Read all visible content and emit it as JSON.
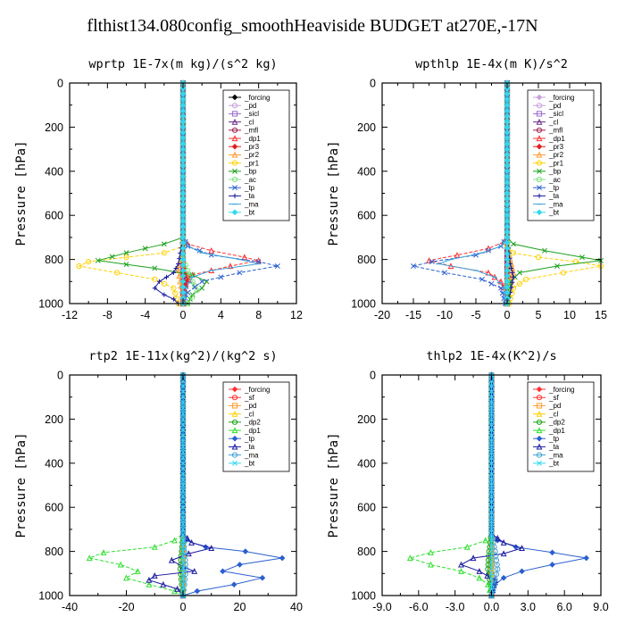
{
  "figure": {
    "title": "flthist134.080config_smoothHeaviside  BUDGET at270E,-17N"
  },
  "chart_data": [
    {
      "type": "line",
      "title": "wprtp  1E-7x(m kg)/(s^2 kg)",
      "ylabel": "Pressure [hPa]",
      "xlim": [
        -12,
        12
      ],
      "ylim": [
        1000,
        0
      ],
      "xticks": [
        "-12",
        "-8",
        "-4",
        "0",
        "4",
        "8",
        "12"
      ],
      "xtick_values": [
        -12,
        -8,
        -4,
        0,
        4,
        8,
        12
      ],
      "yticks": [
        "0",
        "200",
        "400",
        "600",
        "800",
        "1000"
      ],
      "ytick_values": [
        0,
        200,
        400,
        600,
        800,
        1000
      ],
      "series": [
        {
          "name": "_forcing",
          "color": "#000000",
          "x": [
            0,
            0
          ],
          "y": [
            0,
            1000
          ]
        },
        {
          "name": "_pd",
          "color": "#c9a0dc",
          "x": [
            0,
            0
          ],
          "y": [
            0,
            1000
          ]
        },
        {
          "name": "_sicl",
          "color": "#9a6ad0",
          "x": [
            0,
            0
          ],
          "y": [
            0,
            1000
          ]
        },
        {
          "name": "_cl",
          "color": "#6a2a8a",
          "x": [
            0,
            0
          ],
          "y": [
            0,
            1000
          ]
        },
        {
          "name": "_mfl",
          "color": "#a0204a",
          "x": [
            0,
            0
          ],
          "y": [
            0,
            1000
          ]
        },
        {
          "name": "_dp1",
          "color": "#ff3030",
          "x": [
            0,
            0,
            0.5,
            3,
            6.5,
            8,
            5,
            1,
            0.3,
            0,
            0
          ],
          "y": [
            0,
            700,
            730,
            760,
            790,
            805,
            830,
            870,
            920,
            960,
            1000
          ]
        },
        {
          "name": "_pr3",
          "color": "#e02020",
          "x": [
            0,
            0,
            0,
            0.2,
            0.5,
            0.3,
            0,
            0
          ],
          "y": [
            0,
            700,
            820,
            860,
            880,
            920,
            960,
            1000
          ]
        },
        {
          "name": "_pr2",
          "color": "#ff9a30",
          "x": [
            0,
            0,
            -0.2,
            -0.5,
            -0.3,
            0,
            0
          ],
          "y": [
            0,
            700,
            800,
            850,
            900,
            960,
            1000
          ]
        },
        {
          "name": "_pr1",
          "color": "#ffd000",
          "x": [
            0,
            0,
            -2,
            -6,
            -10,
            -11,
            -7,
            -3,
            -1,
            -0.5
          ],
          "y": [
            0,
            740,
            770,
            790,
            810,
            830,
            860,
            890,
            930,
            1000
          ]
        },
        {
          "name": "_bp",
          "color": "#1ca01c",
          "x": [
            0,
            0,
            -2,
            -6,
            -9,
            -3,
            1,
            2.5,
            2,
            1,
            0.5
          ],
          "y": [
            0,
            700,
            730,
            770,
            805,
            840,
            870,
            900,
            930,
            960,
            1000
          ]
        },
        {
          "name": "_ac",
          "color": "#80e080",
          "x": [
            0,
            0,
            0,
            0.5,
            1,
            1.5,
            1,
            0.5
          ],
          "y": [
            0,
            700,
            800,
            850,
            900,
            940,
            970,
            1000
          ]
        },
        {
          "name": "_tp",
          "color": "#2a5fd0",
          "x": [
            0,
            0,
            0.5,
            3,
            8,
            10,
            6,
            2,
            0.5,
            0
          ],
          "y": [
            0,
            700,
            740,
            780,
            810,
            830,
            860,
            900,
            950,
            1000
          ]
        },
        {
          "name": "_ta",
          "color": "#1a1aa0",
          "x": [
            0,
            0,
            -0.5,
            -1,
            -2.5,
            -3,
            -2,
            -1,
            -0.5
          ],
          "y": [
            0,
            700,
            820,
            860,
            900,
            930,
            960,
            980,
            1000
          ]
        },
        {
          "name": "_ma",
          "color": "#40a0d8",
          "x": [
            0,
            0,
            0.5,
            2,
            6,
            8,
            3,
            1,
            0.3,
            0
          ],
          "y": [
            0,
            700,
            740,
            770,
            800,
            820,
            850,
            880,
            930,
            1000
          ]
        },
        {
          "name": "_bt",
          "color": "#30d8f0",
          "x": [
            0,
            0
          ],
          "y": [
            0,
            1000
          ]
        }
      ]
    },
    {
      "type": "line",
      "title": "wpthlp  1E-4x(m K)/s^2",
      "ylabel": "Pressure [hPa]",
      "xlim": [
        -20,
        15
      ],
      "ylim": [
        1000,
        0
      ],
      "xticks": [
        "-20",
        "-15",
        "-10",
        "-5",
        "0",
        "5",
        "10",
        "15"
      ],
      "xtick_values": [
        -20,
        -15,
        -10,
        -5,
        0,
        5,
        10,
        15
      ],
      "yticks": [
        "0",
        "200",
        "400",
        "600",
        "800",
        "1000"
      ],
      "ytick_values": [
        0,
        200,
        400,
        600,
        800,
        1000
      ],
      "series": [
        {
          "name": "_forcing",
          "color": "#c9a0dc",
          "x": [
            0,
            0
          ],
          "y": [
            0,
            1000
          ]
        },
        {
          "name": "_pd",
          "color": "#c9a0dc",
          "x": [
            0,
            0
          ],
          "y": [
            0,
            1000
          ]
        },
        {
          "name": "_sicl",
          "color": "#9a6ad0",
          "x": [
            0,
            0
          ],
          "y": [
            0,
            1000
          ]
        },
        {
          "name": "_cl",
          "color": "#6a2a8a",
          "x": [
            0,
            0
          ],
          "y": [
            0,
            1000
          ]
        },
        {
          "name": "_mfl",
          "color": "#a0204a",
          "x": [
            0,
            0
          ],
          "y": [
            0,
            1000
          ]
        },
        {
          "name": "_dp1",
          "color": "#ff3030",
          "x": [
            0,
            0,
            -0.5,
            -3,
            -8,
            -12.5,
            -9,
            -3,
            -1,
            -0.2,
            0
          ],
          "y": [
            0,
            700,
            720,
            750,
            780,
            805,
            830,
            860,
            900,
            950,
            1000
          ]
        },
        {
          "name": "_pr3",
          "color": "#e02020",
          "x": [
            0,
            0,
            0,
            0.3,
            0,
            0
          ],
          "y": [
            0,
            700,
            820,
            880,
            950,
            1000
          ]
        },
        {
          "name": "_pr2",
          "color": "#ff9a30",
          "x": [
            0,
            0,
            0.5,
            1,
            0.5,
            0
          ],
          "y": [
            0,
            720,
            800,
            860,
            920,
            1000
          ]
        },
        {
          "name": "_pr1",
          "color": "#ffd000",
          "x": [
            0,
            0,
            1,
            5,
            11,
            15,
            9,
            3,
            1,
            0.3
          ],
          "y": [
            0,
            740,
            770,
            790,
            810,
            830,
            860,
            890,
            930,
            1000
          ]
        },
        {
          "name": "_bp",
          "color": "#1ca01c",
          "x": [
            0,
            0,
            1,
            6,
            12,
            15,
            8,
            2,
            0.5,
            0
          ],
          "y": [
            0,
            700,
            730,
            760,
            790,
            805,
            830,
            860,
            900,
            1000
          ]
        },
        {
          "name": "_ac",
          "color": "#80e080",
          "x": [
            0,
            0,
            0.2,
            0,
            0
          ],
          "y": [
            0,
            700,
            820,
            900,
            1000
          ]
        },
        {
          "name": "_tp",
          "color": "#2a5fd0",
          "x": [
            0,
            0,
            -1,
            -5,
            -12,
            -15,
            -10,
            -4,
            -1,
            -0.3
          ],
          "y": [
            0,
            700,
            740,
            780,
            810,
            830,
            860,
            890,
            930,
            1000
          ]
        },
        {
          "name": "_ta",
          "color": "#1a1aa0",
          "x": [
            0,
            0,
            0.5,
            1,
            0.5,
            0
          ],
          "y": [
            0,
            700,
            820,
            880,
            950,
            1000
          ]
        },
        {
          "name": "_ma",
          "color": "#40a0d8",
          "x": [
            0,
            0,
            -1,
            -4,
            -9,
            -11,
            -5,
            -2,
            -0.5,
            0
          ],
          "y": [
            0,
            700,
            740,
            770,
            800,
            820,
            850,
            880,
            930,
            1000
          ]
        },
        {
          "name": "_bt",
          "color": "#30d8f0",
          "x": [
            0,
            0
          ],
          "y": [
            0,
            1000
          ]
        }
      ]
    },
    {
      "type": "line",
      "title": "rtp2  1E-11x(kg^2)/(kg^2 s)",
      "ylabel": "Pressure [hPa]",
      "xlim": [
        -40,
        40
      ],
      "ylim": [
        1000,
        0
      ],
      "xticks": [
        "-40",
        "-20",
        "0",
        "20",
        "40"
      ],
      "xtick_values": [
        -40,
        -20,
        0,
        20,
        40
      ],
      "yticks": [
        "0",
        "200",
        "400",
        "600",
        "800",
        "1000"
      ],
      "ytick_values": [
        0,
        200,
        400,
        600,
        800,
        1000
      ],
      "series": [
        {
          "name": "_forcing",
          "color": "#ff3030",
          "x": [
            0,
            0
          ],
          "y": [
            0,
            1000
          ]
        },
        {
          "name": "_sf",
          "color": "#ff3030",
          "x": [
            0,
            0
          ],
          "y": [
            0,
            1000
          ]
        },
        {
          "name": "_pd",
          "color": "#ff9a30",
          "x": [
            0,
            0
          ],
          "y": [
            0,
            1000
          ]
        },
        {
          "name": "_cl",
          "color": "#ffd000",
          "x": [
            0,
            0
          ],
          "y": [
            0,
            1000
          ]
        },
        {
          "name": "_dp2",
          "color": "#1ca01c",
          "x": [
            0,
            0,
            -0.5,
            -1,
            -0.5,
            0
          ],
          "y": [
            0,
            720,
            800,
            880,
            950,
            1000
          ]
        },
        {
          "name": "_dp1",
          "color": "#2ee02e",
          "x": [
            0,
            0,
            -3,
            -10,
            -28,
            -33,
            -22,
            -16,
            -20,
            -12,
            -3,
            0
          ],
          "y": [
            0,
            720,
            750,
            780,
            805,
            830,
            860,
            890,
            920,
            950,
            980,
            1000
          ]
        },
        {
          "name": "_tp",
          "color": "#2a5fd0",
          "x": [
            0,
            0,
            1,
            8,
            22,
            35,
            20,
            14,
            28,
            18,
            5,
            0
          ],
          "y": [
            0,
            720,
            750,
            780,
            800,
            830,
            860,
            890,
            920,
            950,
            980,
            1000
          ]
        },
        {
          "name": "_ta",
          "color": "#1a1aa0",
          "x": [
            0,
            0,
            3,
            10,
            2,
            -4,
            0,
            4,
            -10,
            -12,
            -2,
            0
          ],
          "y": [
            0,
            720,
            760,
            785,
            810,
            840,
            870,
            890,
            910,
            930,
            970,
            1000
          ]
        },
        {
          "name": "_ma",
          "color": "#40a0d8",
          "x": [
            0,
            0,
            0.5,
            1,
            0.5,
            0
          ],
          "y": [
            0,
            720,
            800,
            880,
            950,
            1000
          ]
        },
        {
          "name": "_bt",
          "color": "#30d8f0",
          "x": [
            0,
            0
          ],
          "y": [
            0,
            1000
          ]
        }
      ]
    },
    {
      "type": "line",
      "title": "thlp2  1E-4x(K^2)/s",
      "ylabel": "Pressure [hPa]",
      "xlim": [
        -9,
        9
      ],
      "ylim": [
        1000,
        0
      ],
      "xticks": [
        "-9.0",
        "-6.0",
        "-3.0",
        "0.0",
        "3.0",
        "6.0",
        "9.0"
      ],
      "xtick_values": [
        -9,
        -6,
        -3,
        0,
        3,
        6,
        9
      ],
      "yticks": [
        "0",
        "200",
        "400",
        "600",
        "800",
        "1000"
      ],
      "ytick_values": [
        0,
        200,
        400,
        600,
        800,
        1000
      ],
      "series": [
        {
          "name": "_forcing",
          "color": "#ff3030",
          "x": [
            0,
            0
          ],
          "y": [
            0,
            1000
          ]
        },
        {
          "name": "_sf",
          "color": "#ff3030",
          "x": [
            0,
            0
          ],
          "y": [
            0,
            1000
          ]
        },
        {
          "name": "_pd",
          "color": "#ff9a30",
          "x": [
            0,
            0
          ],
          "y": [
            0,
            1000
          ]
        },
        {
          "name": "_cl",
          "color": "#ffd000",
          "x": [
            0,
            0
          ],
          "y": [
            0,
            1000
          ]
        },
        {
          "name": "_dp2",
          "color": "#1ca01c",
          "x": [
            0,
            0,
            -0.2,
            -0.3,
            -0.1,
            0
          ],
          "y": [
            0,
            720,
            800,
            880,
            950,
            1000
          ]
        },
        {
          "name": "_dp1",
          "color": "#2ee02e",
          "x": [
            0,
            0,
            -0.5,
            -2,
            -5,
            -6.7,
            -5,
            -2.5,
            -1,
            -0.3,
            0
          ],
          "y": [
            0,
            720,
            750,
            780,
            805,
            830,
            860,
            890,
            920,
            950,
            1000
          ]
        },
        {
          "name": "_tp",
          "color": "#2a5fd0",
          "x": [
            0,
            0,
            0.5,
            2,
            5,
            7.8,
            5,
            2.5,
            1,
            0.3,
            0
          ],
          "y": [
            0,
            720,
            750,
            780,
            805,
            830,
            860,
            890,
            920,
            950,
            1000
          ]
        },
        {
          "name": "_ta",
          "color": "#1a1aa0",
          "x": [
            0,
            0,
            1,
            2.5,
            1,
            -1.5,
            -2.5,
            -1,
            0.3,
            0
          ],
          "y": [
            0,
            720,
            760,
            785,
            810,
            830,
            860,
            890,
            930,
            1000
          ]
        },
        {
          "name": "_ma",
          "color": "#40a0d8",
          "x": [
            0,
            0,
            0.3,
            0.5,
            0.2,
            0
          ],
          "y": [
            0,
            720,
            800,
            880,
            950,
            1000
          ]
        },
        {
          "name": "_bt",
          "color": "#30d8f0",
          "x": [
            0,
            0
          ],
          "y": [
            0,
            1000
          ]
        }
      ]
    }
  ]
}
